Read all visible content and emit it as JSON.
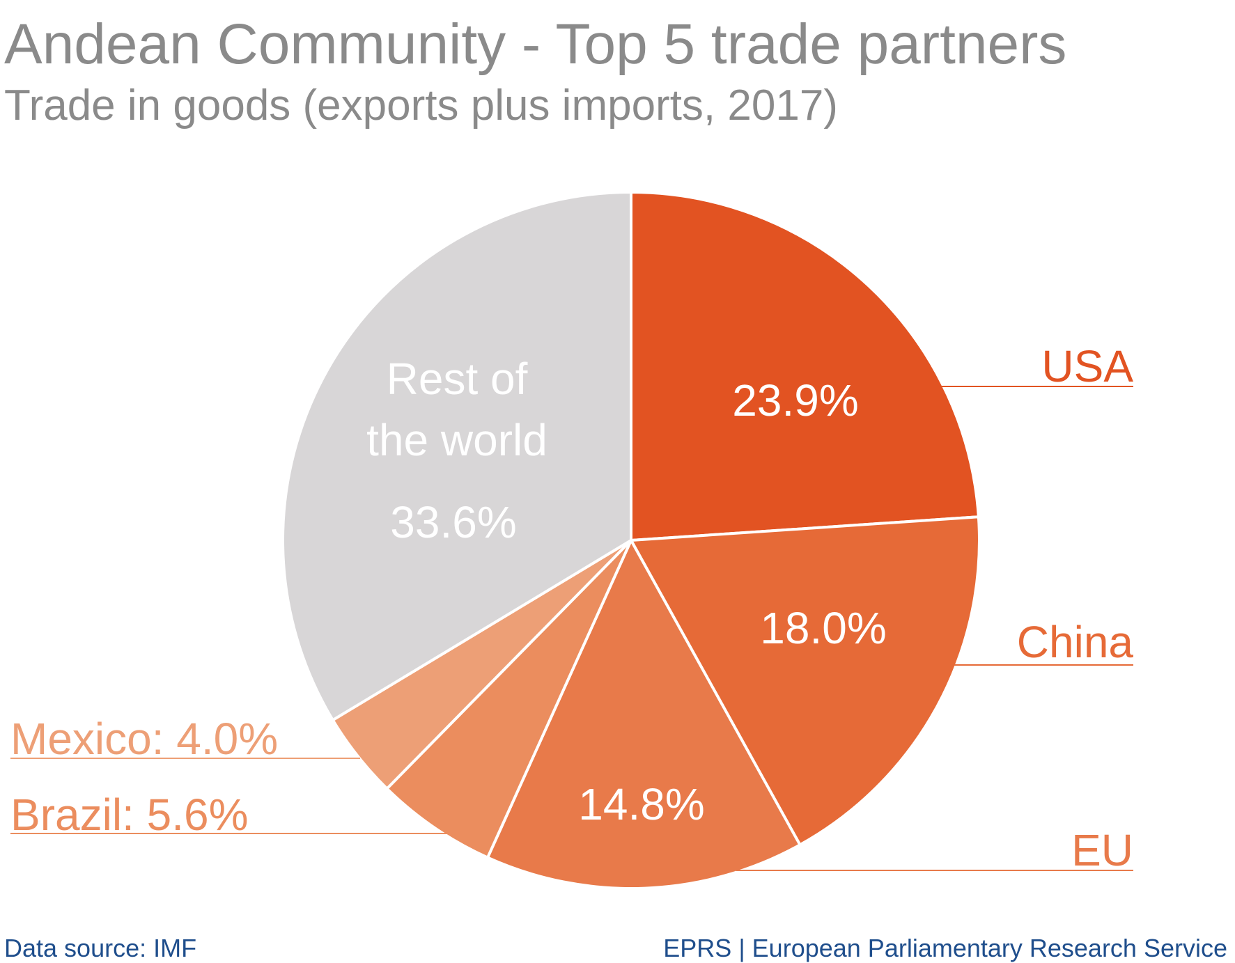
{
  "title": "Andean Community - Top 5 trade partners",
  "subtitle": "Trade in goods (exports plus imports, 2017)",
  "footer": {
    "source": "Data source: IMF",
    "credit": "EPRS | European Parliamentary Research Service"
  },
  "colors": {
    "title": "#8a8a8a",
    "footer": "#1f4e8c",
    "separator": "#ffffff"
  },
  "chart_data": {
    "type": "pie",
    "title": "Andean Community - Top 5 trade partners",
    "subtitle": "Trade in goods (exports plus imports, 2017)",
    "start": "top, clockwise",
    "slices": [
      {
        "name": "USA",
        "value": 23.9,
        "label": "23.9%",
        "color": "#e25322"
      },
      {
        "name": "China",
        "value": 18.0,
        "label": "18.0%",
        "color": "#e66a37"
      },
      {
        "name": "EU",
        "value": 14.8,
        "label": "14.8%",
        "color": "#e87a4a"
      },
      {
        "name": "Brazil",
        "value": 5.6,
        "label": "Brazil: 5.6%",
        "color": "#eb8d5e"
      },
      {
        "name": "Mexico",
        "value": 4.0,
        "label": "Mexico: 4.0%",
        "color": "#ed9f76"
      },
      {
        "name": "Rest of the world",
        "value": 33.6,
        "label": "33.6%",
        "label_lines": [
          "Rest of",
          "the world"
        ],
        "color": "#d8d6d7"
      }
    ]
  }
}
